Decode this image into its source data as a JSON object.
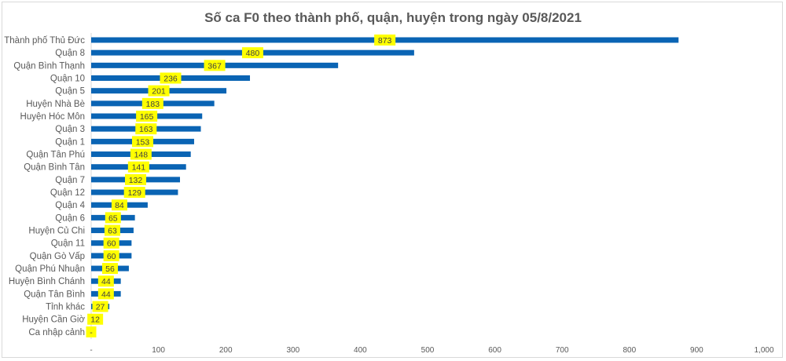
{
  "chart_data": {
    "type": "bar",
    "orientation": "horizontal",
    "title": "Số ca F0 theo thành phố, quận, huyện trong ngày 05/8/2021",
    "categories": [
      "Thành phố Thủ Đức",
      "Quận 8",
      "Quận Bình Thạnh",
      "Quận 10",
      "Quận 5",
      "Huyện Nhà Bè",
      "Huyện Hóc Môn",
      "Quận 3",
      "Quận 1",
      "Quận Tân Phú",
      "Quận Bình Tân",
      "Quận 7",
      "Quận 12",
      "Quận 4",
      "Quận 6",
      "Huyện Củ Chi",
      "Quận 11",
      "Quận Gò Vấp",
      "Quận Phú Nhuận",
      "Huyện Bình Chánh",
      "Quận Tân Bình",
      "Tỉnh khác",
      "Huyện Cần Giờ",
      "Ca nhập cảnh"
    ],
    "values": [
      873,
      480,
      367,
      236,
      201,
      183,
      165,
      163,
      153,
      148,
      141,
      132,
      129,
      84,
      65,
      63,
      60,
      60,
      56,
      44,
      44,
      27,
      12,
      0
    ],
    "data_labels": [
      "873",
      "480",
      "367",
      "236",
      "201",
      "183",
      "165",
      "163",
      "153",
      "148",
      "141",
      "132",
      "129",
      "84",
      "65",
      "63",
      "60",
      "60",
      "56",
      "44",
      "44",
      "27",
      "12",
      "-"
    ],
    "xlim": [
      0,
      1000
    ],
    "xticks": [
      "-",
      "100",
      "200",
      "300",
      "400",
      "500",
      "600",
      "700",
      "800",
      "900",
      "1,000"
    ],
    "grid": false,
    "bar_color": "#0a64b4",
    "label_bg": "#ffff00"
  }
}
